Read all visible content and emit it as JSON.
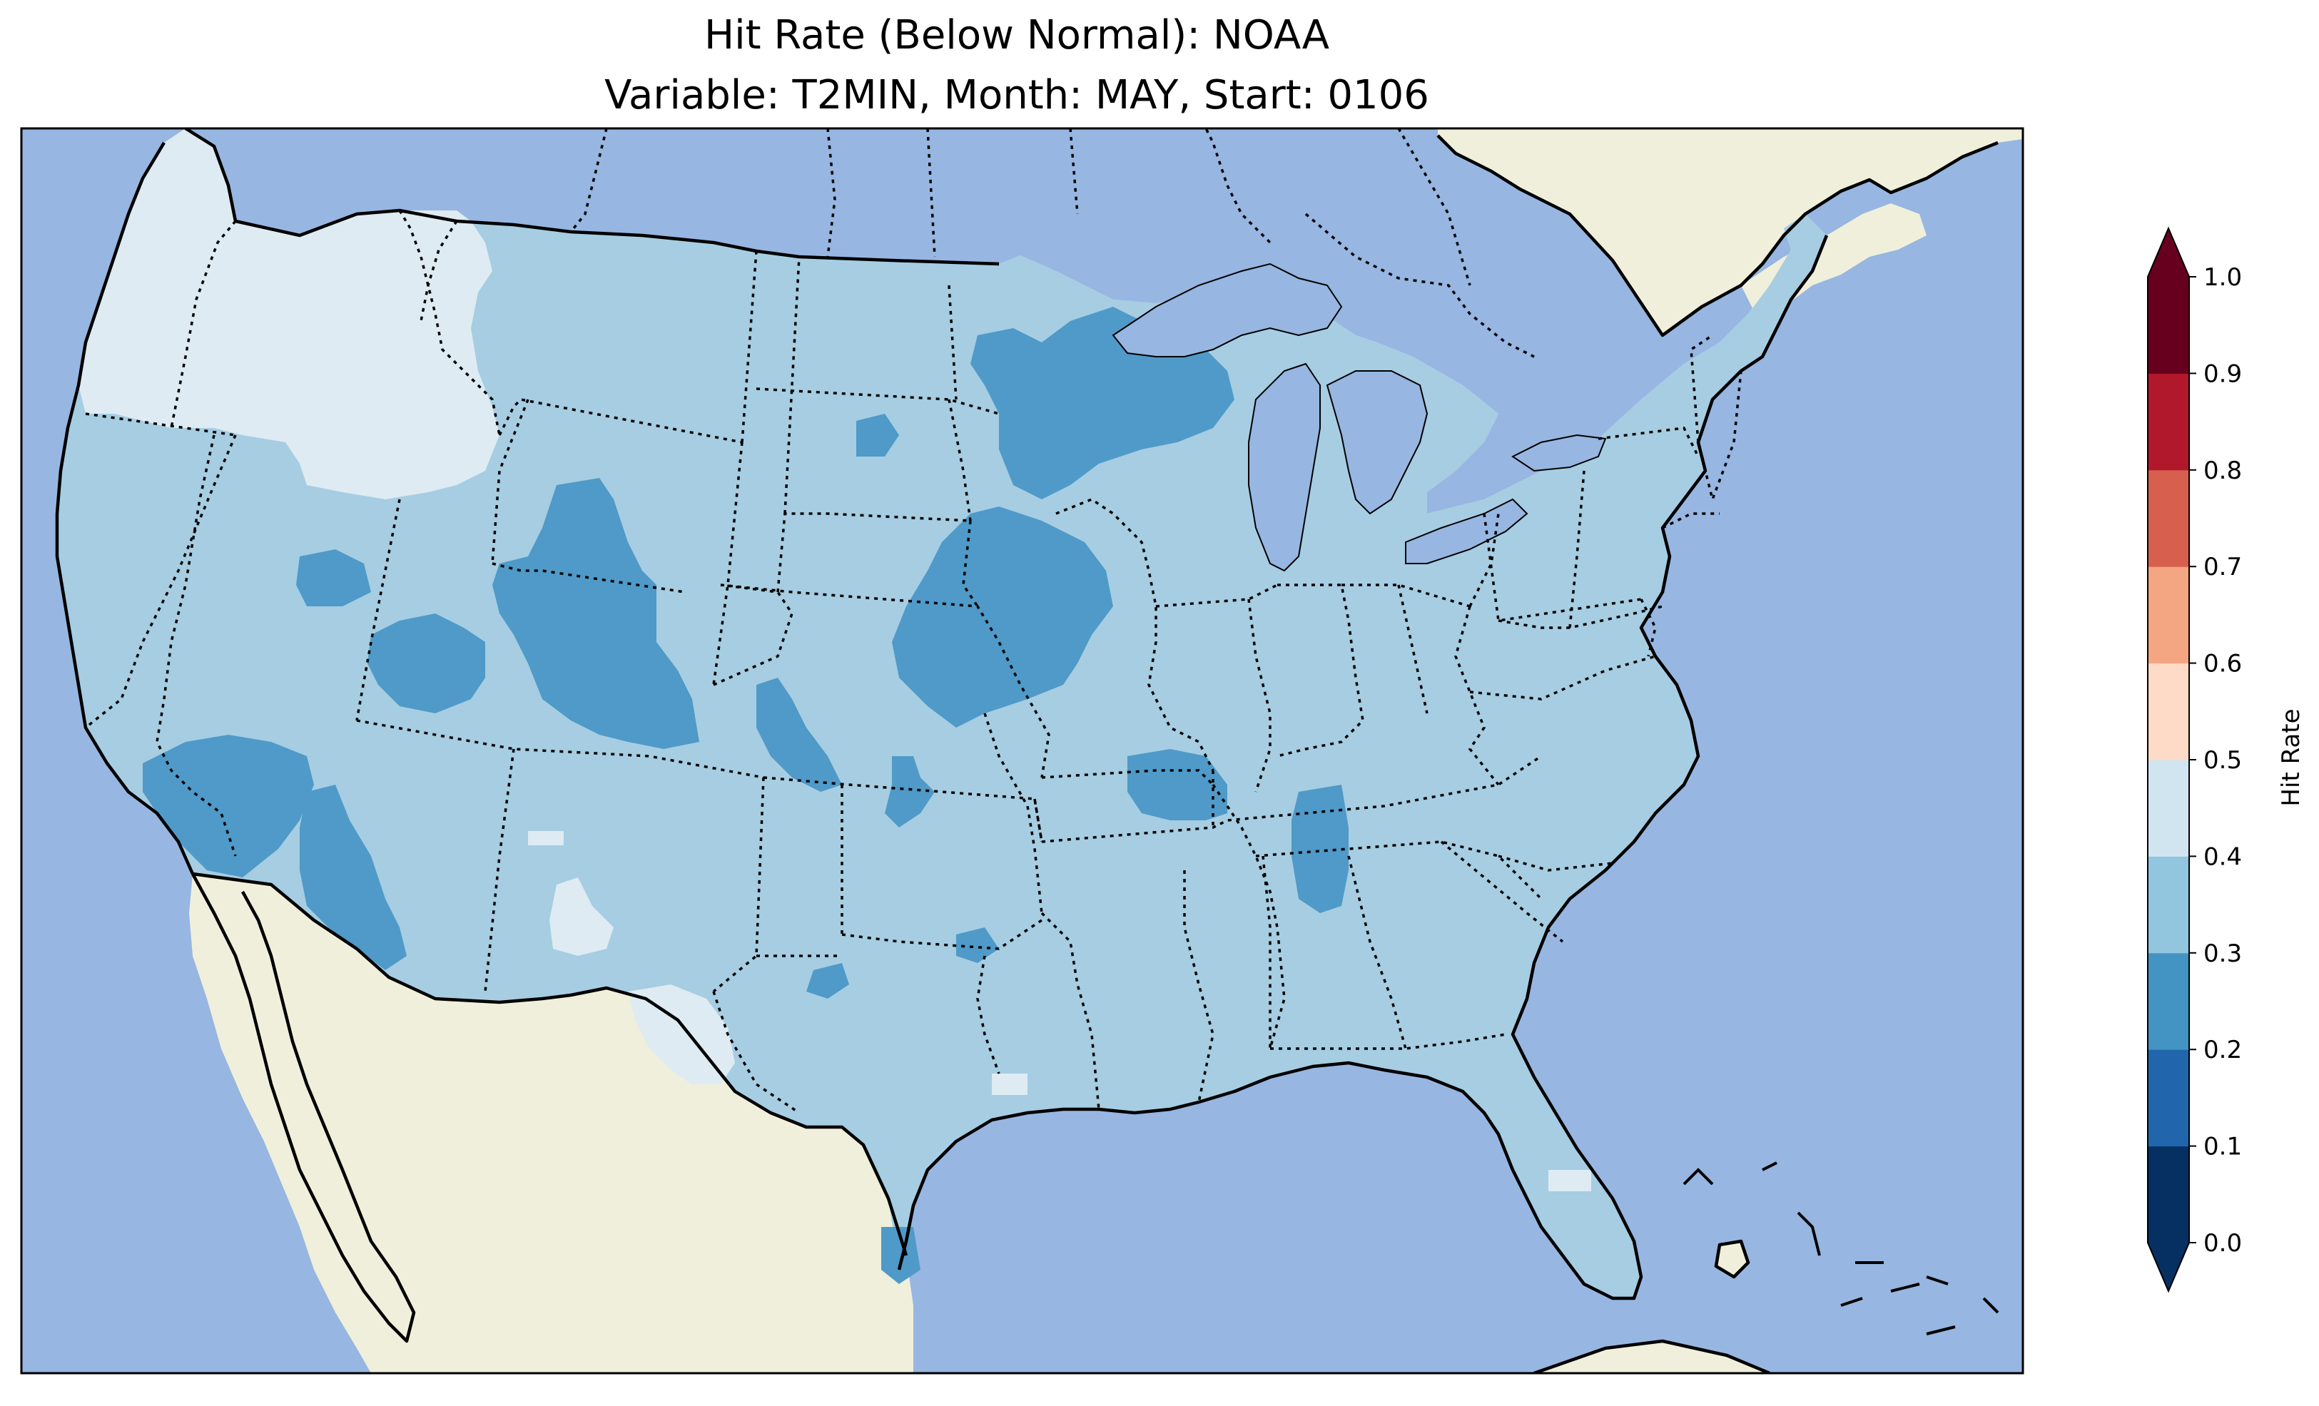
{
  "title": {
    "line1": "Hit Rate (Below Normal): NOAA",
    "line2": "Variable: T2MIN, Month: MAY, Start: 0106"
  },
  "colorbar": {
    "label": "Hit Rate",
    "ticks": [
      "0.0",
      "0.1",
      "0.2",
      "0.3",
      "0.4",
      "0.5",
      "0.6",
      "0.7",
      "0.8",
      "0.9",
      "1.0"
    ],
    "colors": [
      "#053061",
      "#2166ac",
      "#4393c3",
      "#92c5de",
      "#d1e5f0",
      "#fddbc7",
      "#f4a582",
      "#d6604d",
      "#b2182b",
      "#67001f"
    ],
    "extend": "both"
  },
  "map_colors": {
    "ocean": "#97b6e1",
    "land": "#efefdb",
    "class_0_2_0_3": "#4f9ac8",
    "class_0_3_0_4": "#a6cde2",
    "class_0_4_0_5": "#deebf3"
  }
}
